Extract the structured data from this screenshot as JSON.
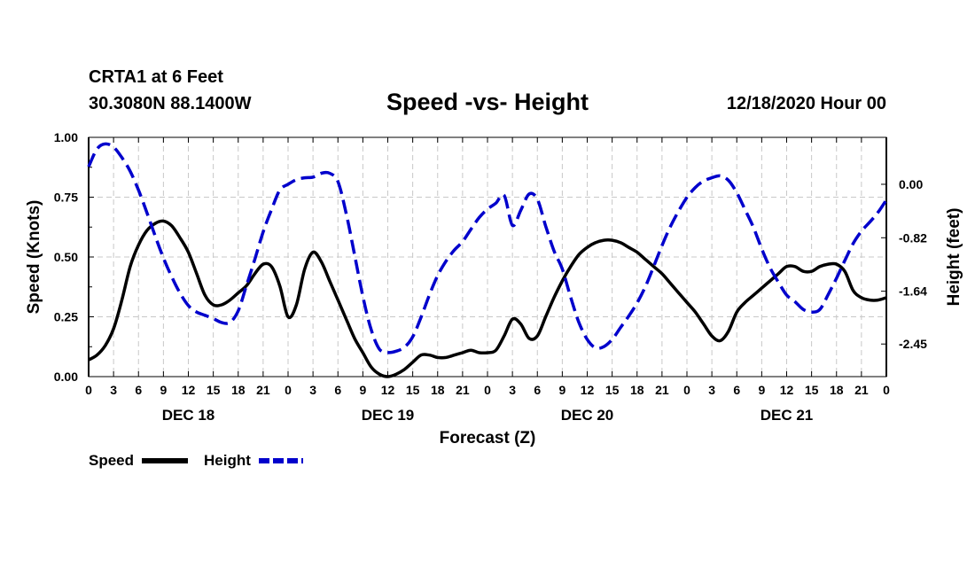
{
  "header": {
    "station": "CRTA1 at 6 Feet",
    "coords": "30.3080N 88.1400W",
    "title": "Speed -vs- Height",
    "datetime": "12/18/2020 Hour 00"
  },
  "colors": {
    "speed": "#000000",
    "height": "#0000cc",
    "grid": "#c8c8c8"
  },
  "chart_data": {
    "type": "line",
    "title": "Speed -vs- Height",
    "xlabel": "Forecast (Z)",
    "ylabel": "Speed (Knots)",
    "y2label": "Height (feet)",
    "xlim": [
      0,
      96
    ],
    "ylim": [
      0,
      1.0
    ],
    "y2lim": [
      -2.95,
      0.72
    ],
    "x_ticks": [
      0,
      3,
      6,
      9,
      12,
      15,
      18,
      21,
      24,
      27,
      30,
      33,
      36,
      39,
      42,
      45,
      48,
      51,
      54,
      57,
      60,
      63,
      66,
      69,
      72,
      75,
      78,
      81,
      84,
      87,
      90,
      93,
      96
    ],
    "x_tick_labels": [
      "0",
      "3",
      "6",
      "9",
      "12",
      "15",
      "18",
      "21",
      "0",
      "3",
      "6",
      "9",
      "12",
      "15",
      "18",
      "21",
      "0",
      "3",
      "6",
      "9",
      "12",
      "15",
      "18",
      "21",
      "0",
      "3",
      "6",
      "9",
      "12",
      "15",
      "18",
      "21",
      "0"
    ],
    "day_labels": [
      {
        "x": 12,
        "label": "DEC 18"
      },
      {
        "x": 36,
        "label": "DEC 19"
      },
      {
        "x": 60,
        "label": "DEC 20"
      },
      {
        "x": 84,
        "label": "DEC 21"
      }
    ],
    "y_ticks": [
      0.0,
      0.25,
      0.5,
      0.75,
      1.0
    ],
    "y_tick_labels": [
      "0.00",
      "0.25",
      "0.50",
      "0.75",
      "1.00"
    ],
    "y2_ticks": [
      -2.45,
      -1.64,
      -0.82,
      0.0
    ],
    "y2_tick_labels": [
      "-2.45",
      "-1.64",
      "-0.82",
      "0.00"
    ],
    "grid": true,
    "legend": {
      "position": "bottom-left",
      "speed_label": "Speed",
      "height_label": "Height"
    },
    "series": [
      {
        "name": "Speed",
        "axis": "left",
        "style": "solid",
        "x": [
          0,
          1,
          2,
          3,
          4,
          5,
          6,
          7,
          8,
          9,
          10,
          11,
          12,
          13,
          14,
          15,
          16,
          17,
          18,
          19,
          20,
          21,
          22,
          23,
          24,
          25,
          26,
          27,
          28,
          29,
          30,
          31,
          32,
          33,
          34,
          35,
          36,
          37,
          38,
          39,
          40,
          41,
          42,
          43,
          44,
          45,
          46,
          47,
          48,
          49,
          50,
          51,
          52,
          53,
          54,
          55,
          56,
          57,
          58,
          59,
          60,
          61,
          62,
          63,
          64,
          65,
          66,
          67,
          68,
          69,
          70,
          71,
          72,
          73,
          74,
          75,
          76,
          77,
          78,
          79,
          80,
          81,
          82,
          83,
          84,
          85,
          86,
          87,
          88,
          89,
          90,
          91,
          92,
          93,
          94,
          95,
          96
        ],
        "values": [
          0.07,
          0.09,
          0.13,
          0.2,
          0.32,
          0.46,
          0.55,
          0.61,
          0.64,
          0.65,
          0.63,
          0.58,
          0.52,
          0.43,
          0.34,
          0.3,
          0.3,
          0.32,
          0.35,
          0.38,
          0.43,
          0.47,
          0.46,
          0.38,
          0.25,
          0.3,
          0.45,
          0.52,
          0.48,
          0.4,
          0.32,
          0.24,
          0.16,
          0.1,
          0.04,
          0.01,
          0.0,
          0.01,
          0.03,
          0.06,
          0.09,
          0.09,
          0.08,
          0.08,
          0.09,
          0.1,
          0.11,
          0.1,
          0.1,
          0.11,
          0.17,
          0.24,
          0.22,
          0.16,
          0.17,
          0.25,
          0.33,
          0.4,
          0.46,
          0.51,
          0.54,
          0.56,
          0.57,
          0.57,
          0.56,
          0.54,
          0.52,
          0.49,
          0.46,
          0.43,
          0.39,
          0.35,
          0.31,
          0.27,
          0.22,
          0.17,
          0.15,
          0.19,
          0.27,
          0.31,
          0.34,
          0.37,
          0.4,
          0.43,
          0.46,
          0.46,
          0.44,
          0.44,
          0.46,
          0.47,
          0.47,
          0.44,
          0.36,
          0.33,
          0.32,
          0.32,
          0.33
        ]
      },
      {
        "name": "Height",
        "axis": "right",
        "style": "dashed",
        "x": [
          0,
          1,
          2,
          3,
          4,
          5,
          6,
          7,
          8,
          9,
          10,
          11,
          12,
          13,
          14,
          15,
          16,
          17,
          18,
          19,
          20,
          21,
          22,
          23,
          24,
          25,
          26,
          27,
          28,
          29,
          30,
          31,
          32,
          33,
          34,
          35,
          36,
          37,
          38,
          39,
          40,
          41,
          42,
          43,
          44,
          45,
          46,
          47,
          48,
          49,
          50,
          51,
          52,
          53,
          54,
          55,
          56,
          57,
          58,
          59,
          60,
          61,
          62,
          63,
          64,
          65,
          66,
          67,
          68,
          69,
          70,
          71,
          72,
          73,
          74,
          75,
          76,
          77,
          78,
          79,
          80,
          81,
          82,
          83,
          84,
          85,
          86,
          87,
          88,
          89,
          90,
          91,
          92,
          93,
          94,
          95,
          96
        ],
        "values": [
          0.27,
          0.54,
          0.62,
          0.57,
          0.41,
          0.2,
          -0.09,
          -0.43,
          -0.79,
          -1.13,
          -1.42,
          -1.67,
          -1.86,
          -1.96,
          -2.01,
          -2.06,
          -2.12,
          -2.12,
          -1.94,
          -1.55,
          -1.15,
          -0.73,
          -0.39,
          -0.09,
          0.0,
          0.07,
          0.1,
          0.11,
          0.17,
          0.17,
          0.04,
          -0.45,
          -1.08,
          -1.72,
          -2.23,
          -2.53,
          -2.58,
          -2.56,
          -2.5,
          -2.34,
          -2.04,
          -1.7,
          -1.4,
          -1.18,
          -1.01,
          -0.88,
          -0.69,
          -0.51,
          -0.38,
          -0.29,
          -0.17,
          -0.63,
          -0.4,
          -0.15,
          -0.23,
          -0.64,
          -1.02,
          -1.3,
          -1.73,
          -2.12,
          -2.38,
          -2.51,
          -2.49,
          -2.38,
          -2.2,
          -2.02,
          -1.82,
          -1.57,
          -1.26,
          -0.94,
          -0.65,
          -0.41,
          -0.2,
          -0.05,
          0.05,
          0.1,
          0.13,
          0.06,
          -0.13,
          -0.39,
          -0.66,
          -0.99,
          -1.28,
          -1.5,
          -1.7,
          -1.8,
          -1.92,
          -1.96,
          -1.92,
          -1.69,
          -1.44,
          -1.17,
          -0.91,
          -0.72,
          -0.58,
          -0.43,
          -0.24
        ]
      }
    ]
  }
}
